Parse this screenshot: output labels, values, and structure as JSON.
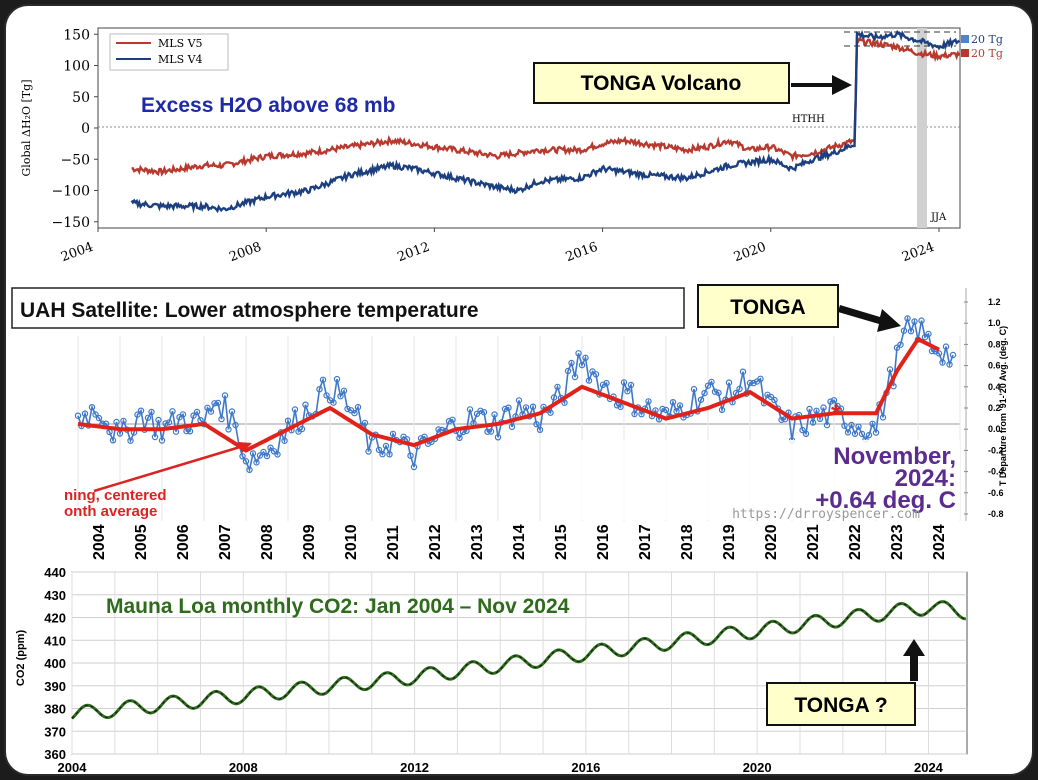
{
  "colors": {
    "v5": "#b8392e",
    "v4": "#1c3f7f",
    "uah": "#3f78c8",
    "uah_mean": "#e0221b",
    "co2": "#2e6b1c",
    "callout_fill": "#ffffcc",
    "panel3_title": "#2e6b1c",
    "panel1_title": "#1f2aa8",
    "date_text": "#5b2b8f"
  },
  "panel1": {
    "title": "Excess H2O above 68 mb",
    "ylabel": "Global ΔH₂O [Tg]",
    "callout": "TONGA Volcano",
    "hthh": "HTHH",
    "jja": "JJA",
    "legend": [
      "MLS V5",
      "MLS V4"
    ],
    "right_labels": [
      "20 Tg",
      "20 Tg"
    ],
    "yticks": [
      "150",
      "100",
      "50",
      "0",
      "−50",
      "−100",
      "−150"
    ],
    "xticks": [
      "2004",
      "2008",
      "2012",
      "2016",
      "2020",
      "2024"
    ]
  },
  "panel2": {
    "title": "UAH Satellite: Lower atmosphere temperature",
    "callout": "TONGA",
    "ylabel": "T Departure from '91-'20 Avg. (deg. C)",
    "yticks": [
      "1.2",
      "1.0",
      "0.8",
      "0.6",
      "0.4",
      "0.2",
      "0.0",
      "-0.2",
      "-0.4",
      "-0.6",
      "-0.8"
    ],
    "date_line1": "November,",
    "date_line2": "2024:",
    "date_line3": "+0.64 deg. C",
    "running1": "ning, centered",
    "running2": "onth average",
    "url": "https://drroyspencer.com",
    "years": [
      "2004",
      "2005",
      "2006",
      "2007",
      "2008",
      "2009",
      "2010",
      "2011",
      "2012",
      "2013",
      "2014",
      "2015",
      "2016",
      "2017",
      "2018",
      "2019",
      "2020",
      "2021",
      "2022",
      "2023",
      "2024"
    ]
  },
  "panel3": {
    "title": "Mauna Loa monthly CO2:  Jan 2004 – Nov 2024",
    "ylabel": "CO2 (ppm)",
    "callout": "TONGA ?",
    "yticks": [
      "440",
      "430",
      "420",
      "410",
      "400",
      "390",
      "380",
      "370",
      "360"
    ],
    "xticks": [
      "2004",
      "2008",
      "2012",
      "2016",
      "2020",
      "2024"
    ]
  },
  "chart_data": [
    {
      "type": "line",
      "title": "Excess H2O above 68 mb",
      "ylabel": "Global ΔH₂O [Tg]",
      "xlim": [
        2004,
        2024.5
      ],
      "ylim": [
        -160,
        160
      ],
      "series": [
        {
          "name": "MLS V5",
          "x": [
            2004.8,
            2005.5,
            2006.5,
            2007.0,
            2008.0,
            2009.0,
            2010.0,
            2011.0,
            2011.5,
            2012.5,
            2013.5,
            2014.0,
            2014.5,
            2015.5,
            2016.0,
            2016.5,
            2017.0,
            2018.0,
            2018.5,
            2019.0,
            2019.5,
            2020.0,
            2020.5,
            2021.0,
            2021.5,
            2022.0,
            2022.05,
            2022.5,
            2023.0,
            2023.5,
            2024.0,
            2024.5
          ],
          "y": [
            -65,
            -70,
            -60,
            -60,
            -45,
            -40,
            -30,
            -20,
            -25,
            -35,
            -45,
            -40,
            -35,
            -35,
            -25,
            -20,
            -25,
            -35,
            -30,
            -20,
            -35,
            -30,
            -45,
            -40,
            -30,
            -20,
            140,
            135,
            130,
            120,
            115,
            118
          ]
        },
        {
          "name": "MLS V4",
          "x": [
            2004.8,
            2005.5,
            2006.5,
            2007.0,
            2008.0,
            2009.0,
            2010.0,
            2011.0,
            2011.5,
            2012.5,
            2013.5,
            2014.0,
            2014.5,
            2015.5,
            2016.0,
            2016.5,
            2017.0,
            2018.0,
            2018.5,
            2019.0,
            2019.5,
            2020.0,
            2020.5,
            2021.0,
            2021.5,
            2022.0,
            2022.05,
            2022.5,
            2023.0,
            2023.5,
            2024.0,
            2024.5
          ],
          "y": [
            -120,
            -125,
            -125,
            -130,
            -110,
            -100,
            -75,
            -60,
            -65,
            -80,
            -95,
            -100,
            -85,
            -80,
            -65,
            -70,
            -75,
            -80,
            -70,
            -60,
            -55,
            -50,
            -65,
            -50,
            -40,
            -25,
            150,
            145,
            150,
            140,
            130,
            140
          ]
        }
      ]
    },
    {
      "type": "line",
      "title": "UAH Satellite: Lower atmosphere temperature",
      "ylabel": "T Departure from '91-'20 Avg. (deg. C)",
      "xlim": [
        2004,
        2025
      ],
      "ylim": [
        -0.8,
        1.2
      ],
      "series": [
        {
          "name": "",
          "x": [
            2004,
            2004.5,
            2005,
            2005.5,
            2006,
            2006.5,
            2007,
            2007.3,
            2007.8,
            2008,
            2008.5,
            2009,
            2009.5,
            2010,
            2010.3,
            2010.8,
            2011,
            2011.5,
            2012,
            2012.5,
            2013,
            2013.5,
            2014,
            2014.5,
            2015,
            2015.5,
            2016,
            2016.3,
            2016.8,
            2017,
            2017.5,
            2018,
            2018.5,
            2019,
            2019.5,
            2020,
            2020.5,
            2021,
            2021.5,
            2022,
            2022.5,
            2023,
            2023.3,
            2023.7,
            2024,
            2024.3,
            2024.6,
            2024.9
          ],
          "y": [
            0.1,
            0.2,
            -0.1,
            0.15,
            0.0,
            0.1,
            0.05,
            0.3,
            0.0,
            -0.3,
            -0.2,
            0.0,
            0.2,
            0.4,
            0.3,
            0.0,
            -0.2,
            -0.1,
            -0.25,
            -0.1,
            0.05,
            0.1,
            0.05,
            0.2,
            0.1,
            0.3,
            0.7,
            0.5,
            0.3,
            0.35,
            0.2,
            0.1,
            0.25,
            0.35,
            0.3,
            0.5,
            0.2,
            0.0,
            0.1,
            0.15,
            0.05,
            0.0,
            0.4,
            0.9,
            0.95,
            0.8,
            0.75,
            0.64
          ]
        },
        {
          "name": "",
          "x": [
            2004,
            2005,
            2006,
            2007,
            2008,
            2009,
            2010,
            2011,
            2012,
            2013,
            2014,
            2015,
            2016,
            2017,
            2018,
            2019,
            2020,
            2021,
            2022,
            2023,
            2023.5,
            2024,
            2024.5
          ],
          "y": [
            0.05,
            0.0,
            0.0,
            0.05,
            -0.2,
            0.0,
            0.2,
            -0.05,
            -0.15,
            0.0,
            0.05,
            0.15,
            0.4,
            0.25,
            0.1,
            0.2,
            0.35,
            0.1,
            0.15,
            0.15,
            0.55,
            0.85,
            0.75
          ]
        }
      ]
    },
    {
      "type": "line",
      "title": "Mauna Loa monthly CO2:  Jan 2004 – Nov 2024",
      "ylabel": "CO2 (ppm)",
      "xlim": [
        2004,
        2024.9
      ],
      "ylim": [
        360,
        440
      ],
      "seasonal_amplitude_ppm": 3.2,
      "series": [
        {
          "name": "",
          "x": [
            2004,
            2008,
            2012,
            2016,
            2020,
            2024,
            2024.9
          ],
          "y": [
            377.5,
            385.6,
            393.9,
            404.2,
            414.2,
            424.6,
            422.5
          ]
        }
      ]
    }
  ]
}
